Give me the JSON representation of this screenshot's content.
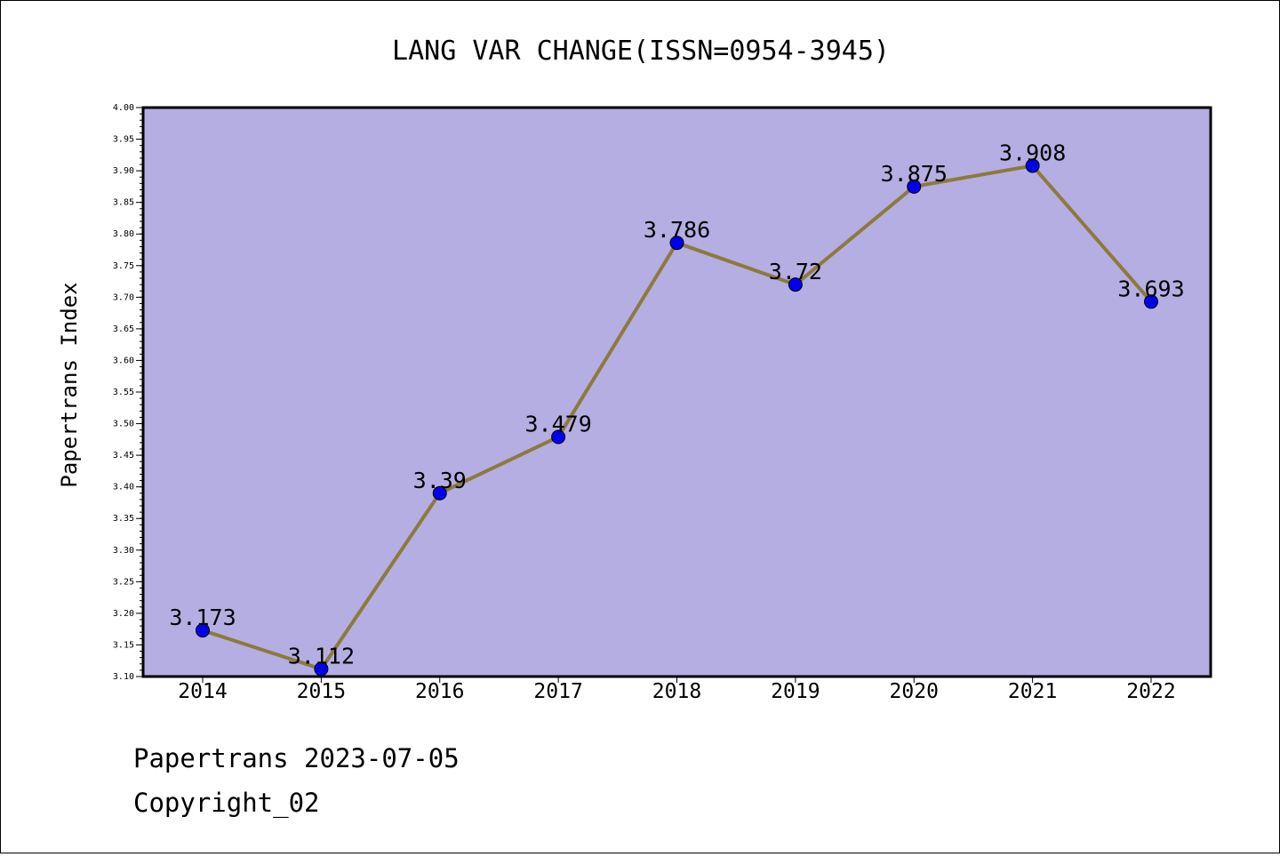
{
  "chart_data": {
    "type": "line",
    "title": "LANG VAR CHANGE(ISSN=0954-3945)",
    "xlabel": "",
    "ylabel": "Papertrans Index",
    "categories": [
      "2014",
      "2015",
      "2016",
      "2017",
      "2018",
      "2019",
      "2020",
      "2021",
      "2022"
    ],
    "series": [
      {
        "values": [
          3.173,
          3.112,
          3.39,
          3.479,
          3.786,
          3.72,
          3.875,
          3.908,
          3.693
        ]
      }
    ],
    "data_labels": [
      "3.173",
      "3.112",
      "3.39",
      "3.479",
      "3.786",
      "3.72",
      "3.875",
      "3.908",
      "3.693"
    ],
    "ylim": [
      3.1,
      4.0
    ],
    "yticks": [
      "3.10",
      "3.15",
      "3.20",
      "3.25",
      "3.30",
      "3.35",
      "3.40",
      "3.45",
      "3.50",
      "3.55",
      "3.60",
      "3.65",
      "3.70",
      "3.75",
      "3.80",
      "3.85",
      "3.90",
      "3.95",
      "4.00"
    ],
    "grid": false,
    "colors": {
      "plot_background": "#b4aee2",
      "line": "#8c7a3c",
      "marker": "#0000ee"
    }
  },
  "footer": {
    "line1": "Papertrans 2023-07-05",
    "line2": "Copyright_02"
  }
}
